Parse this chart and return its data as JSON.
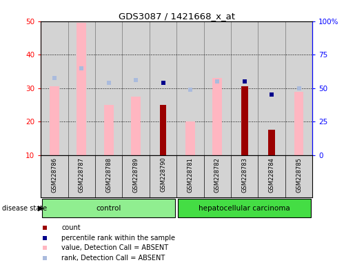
{
  "title": "GDS3087 / 1421668_x_at",
  "samples": [
    "GSM228786",
    "GSM228787",
    "GSM228788",
    "GSM228789",
    "GSM228790",
    "GSM228781",
    "GSM228782",
    "GSM228783",
    "GSM228784",
    "GSM228785"
  ],
  "n_control": 5,
  "n_carcinoma": 5,
  "value_absent": [
    30.5,
    49.5,
    25.0,
    27.5,
    null,
    20.0,
    33.0,
    null,
    null,
    29.0
  ],
  "rank_absent": [
    33.0,
    36.0,
    31.5,
    32.5,
    null,
    29.5,
    32.0,
    null,
    null,
    30.0
  ],
  "count": [
    null,
    null,
    null,
    null,
    25.0,
    null,
    null,
    30.5,
    17.5,
    null
  ],
  "percentile_rank": [
    null,
    null,
    null,
    null,
    31.5,
    null,
    null,
    32.0,
    28.0,
    null
  ],
  "ylim_left": [
    10,
    50
  ],
  "ylim_right": [
    0,
    100
  ],
  "yticks_left": [
    10,
    20,
    30,
    40,
    50
  ],
  "yticks_right": [
    0,
    25,
    50,
    75,
    100
  ],
  "ytick_right_labels": [
    "0",
    "25",
    "50",
    "75",
    "100%"
  ],
  "color_count": "#9B0000",
  "color_percentile": "#00008B",
  "color_value_absent": "#FFB6C1",
  "color_rank_absent": "#AABBDD",
  "color_bg_sample": "#D3D3D3",
  "color_control": "#90EE90",
  "color_carcinoma": "#44DD44",
  "legend_items": [
    {
      "label": "count",
      "color": "#9B0000"
    },
    {
      "label": "percentile rank within the sample",
      "color": "#00008B"
    },
    {
      "label": "value, Detection Call = ABSENT",
      "color": "#FFB6C1"
    },
    {
      "label": "rank, Detection Call = ABSENT",
      "color": "#AABBDD"
    }
  ],
  "fig_width": 5.15,
  "fig_height": 3.84,
  "dpi": 100
}
